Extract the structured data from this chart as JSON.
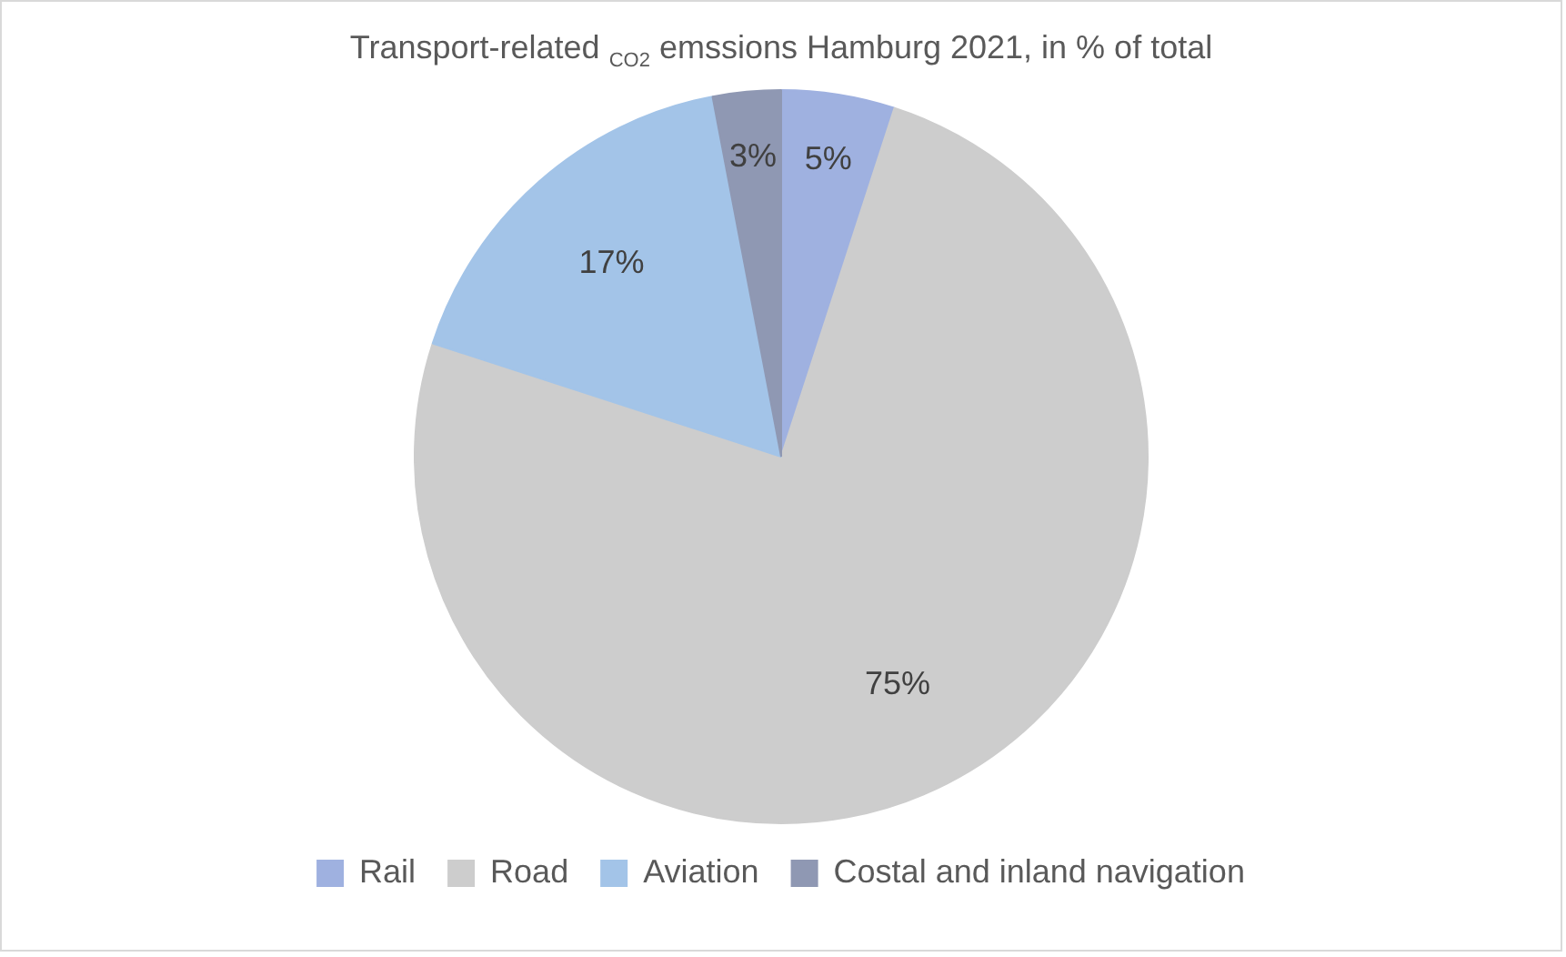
{
  "chart_data": {
    "type": "pie",
    "title": "Transport-related $_{CO2}$ emssions Hamburg 2021, in % of total",
    "categories": [
      "Rail",
      "Road",
      "Aviation",
      "Costal and inland navigation"
    ],
    "values": [
      5,
      75,
      17,
      3
    ],
    "colors": [
      "#9fb1e0",
      "#cdcdcd",
      "#a3c4e8",
      "#8f98b3"
    ],
    "value_labels": [
      "5%",
      "75%",
      "17%",
      "3%"
    ],
    "legend": "bottom"
  }
}
